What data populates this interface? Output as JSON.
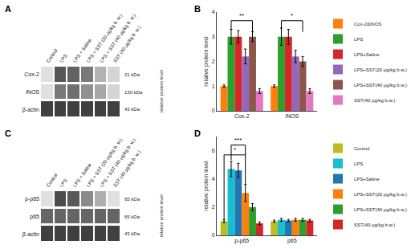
{
  "chart_data": [
    {
      "type": "heatmap",
      "title": "A",
      "x": [
        "Control",
        "LPS",
        "LPS + Saline",
        "LPS + SST (20 μg/kg b. w.)",
        "LPS + SST (40 μg/kg b. w.)",
        "SST (40 μg/kg b. w.)"
      ],
      "y": [
        "Cox-2",
        "iNOS",
        "β-actin"
      ],
      "row_labels_right": [
        "21 kDa",
        "130 kDa",
        "43 kDa"
      ],
      "cells": [
        [
          0.15,
          0.75,
          0.7,
          0.6,
          0.35,
          0.2
        ],
        [
          0.15,
          0.6,
          0.65,
          0.5,
          0.4,
          0.2
        ],
        [
          0.85,
          0.85,
          0.85,
          0.85,
          0.85,
          0.85
        ]
      ],
      "ylabel": "relative protein level"
    },
    {
      "type": "bar",
      "title": "B",
      "categories": [
        "Cox-2",
        "iNOS"
      ],
      "series": [
        {
          "name": "Cox-2&iNOS",
          "values": [
            1.0,
            1.0
          ],
          "errors": [
            0.05,
            0.05
          ]
        },
        {
          "name": "LPS",
          "values": [
            3.0,
            3.0
          ],
          "errors": [
            0.3,
            0.35
          ]
        },
        {
          "name": "LPS+Saline",
          "values": [
            3.0,
            3.0
          ],
          "errors": [
            0.25,
            0.3
          ]
        },
        {
          "name": "LPS+SST(20 μg/kg b.w.)",
          "values": [
            2.2,
            2.2
          ],
          "errors": [
            0.3,
            0.25
          ]
        },
        {
          "name": "LPS+SST(40 μg/kg b.w.)",
          "values": [
            3.0,
            2.0
          ],
          "errors": [
            0.2,
            0.2
          ]
        },
        {
          "name": "SST(40 μg/kg b.w.)",
          "values": [
            0.8,
            0.8
          ],
          "errors": [
            0.1,
            0.1
          ]
        }
      ],
      "ylabel": "relative protein level",
      "ylim": [
        0,
        4
      ],
      "yticks": [
        0,
        1,
        2,
        3,
        4
      ],
      "grid": false,
      "legend": "right",
      "annotations": [
        {
          "text": "**",
          "category": "Cox-2",
          "from": "LPS",
          "to": "LPS+SST(40 μg/kg b.w.)",
          "y": 3.65,
          "y_from": 3.3,
          "y_to": 3.2
        },
        {
          "text": "*",
          "category": "iNOS",
          "from": "LPS",
          "to": "LPS+SST(40 μg/kg b.w.)",
          "y": 3.65,
          "y_from": 3.35,
          "y_to": 3.2
        }
      ]
    },
    {
      "type": "heatmap",
      "title": "C",
      "x": [
        "Control",
        "LPS",
        "LPS + Saline",
        "LPS + SST (20 μg/kg b. w.)",
        "LPS + SST (40 μg/kg b. w.)",
        "SST (40 μg/kg b. w.)"
      ],
      "y": [
        "p-p65",
        "p65",
        "β-actin"
      ],
      "row_labels_right": [
        "65 kDa",
        "65 kDa",
        "43 kDa"
      ],
      "cells": [
        [
          0.2,
          0.8,
          0.75,
          0.55,
          0.4,
          0.2
        ],
        [
          0.7,
          0.7,
          0.7,
          0.7,
          0.7,
          0.7
        ],
        [
          0.85,
          0.85,
          0.85,
          0.85,
          0.85,
          0.85
        ]
      ],
      "ylabel": "relative protein level"
    },
    {
      "type": "bar",
      "title": "D",
      "categories": [
        "p-p65",
        "p65"
      ],
      "series": [
        {
          "name": "Control",
          "values": [
            1.0,
            1.0
          ],
          "errors": [
            0.1,
            0.08
          ]
        },
        {
          "name": "LPS",
          "values": [
            4.7,
            1.1
          ],
          "errors": [
            0.55,
            0.1
          ]
        },
        {
          "name": "LPS+Saline",
          "values": [
            4.6,
            1.05
          ],
          "errors": [
            0.5,
            0.08
          ]
        },
        {
          "name": "LPS+SST(20 μg/kg b.w.)",
          "values": [
            3.0,
            1.1
          ],
          "errors": [
            0.6,
            0.1
          ]
        },
        {
          "name": "LPS+SST(40 μg/kg b.w.)",
          "values": [
            2.0,
            1.1
          ],
          "errors": [
            0.25,
            0.1
          ]
        },
        {
          "name": "SST(40 μg/kg b.w.)",
          "values": [
            0.85,
            1.05
          ],
          "errors": [
            0.1,
            0.08
          ]
        }
      ],
      "ylabel": "relative protein level",
      "ylim": [
        0,
        7
      ],
      "yticks": [
        0,
        2,
        4,
        6
      ],
      "grid": false,
      "legend": "right",
      "annotations": [
        {
          "text": "*",
          "category": "p-p65",
          "from": "Control",
          "to": "LPS+SST(20 μg/kg b.w.)",
          "y": 5.7,
          "y_from": 1.1,
          "y_to": 3.65
        },
        {
          "text": "***",
          "category": "p-p65",
          "from": "LPS",
          "to": "LPS+SST(20 μg/kg b.w.)",
          "y": 6.4,
          "y_from": 5.35,
          "y_to": 5.7
        }
      ]
    }
  ]
}
